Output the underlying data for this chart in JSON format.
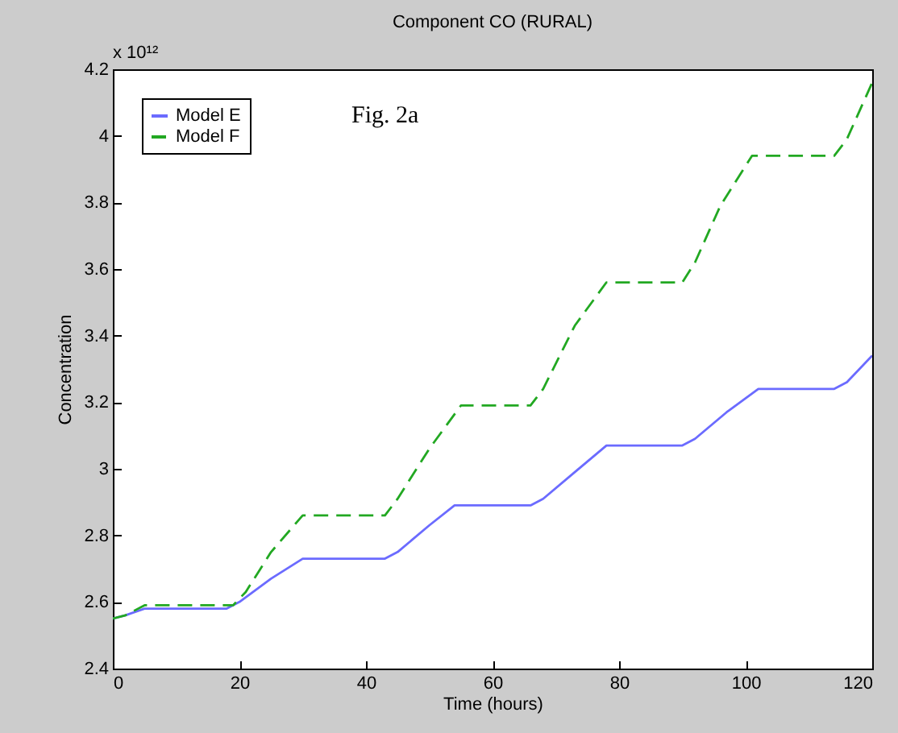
{
  "chart_data": {
    "type": "line",
    "title": "Component CO          (RURAL)",
    "xlabel": "Time   (hours)",
    "ylabel": "Concentration",
    "annotations": [
      "x 10¹²",
      "Fig. 2a"
    ],
    "xlim": [
      0,
      120
    ],
    "xticks": [
      0,
      20,
      40,
      60,
      80,
      100,
      120
    ],
    "ylim": [
      2.4,
      4.2
    ],
    "yticks": [
      2.4,
      2.6,
      2.8,
      3,
      3.2,
      3.4,
      3.6,
      3.8,
      4,
      4.2
    ],
    "legend": "top left",
    "series": [
      {
        "name": "Model E",
        "color": "#6b6bff",
        "line_style": "solid",
        "x": [
          0,
          2,
          5,
          18,
          20,
          25,
          30,
          43,
          45,
          50,
          54,
          66,
          68,
          73,
          78,
          90,
          92,
          97,
          102,
          114,
          116,
          120
        ],
        "values": [
          2.55,
          2.56,
          2.58,
          2.58,
          2.6,
          2.67,
          2.73,
          2.73,
          2.75,
          2.83,
          2.89,
          2.89,
          2.91,
          2.99,
          3.07,
          3.07,
          3.09,
          3.17,
          3.24,
          3.24,
          3.26,
          3.34
        ]
      },
      {
        "name": "Model F",
        "color": "#22a822",
        "line_style": "dashed",
        "x": [
          0,
          2,
          5,
          19,
          21,
          25,
          30,
          43,
          45,
          50,
          55,
          66,
          68,
          73,
          78,
          90,
          92,
          96,
          101,
          114,
          116,
          120
        ],
        "values": [
          2.55,
          2.56,
          2.59,
          2.59,
          2.63,
          2.75,
          2.86,
          2.86,
          2.91,
          3.06,
          3.19,
          3.19,
          3.24,
          3.43,
          3.56,
          3.56,
          3.62,
          3.79,
          3.94,
          3.94,
          3.99,
          4.16
        ]
      }
    ]
  }
}
